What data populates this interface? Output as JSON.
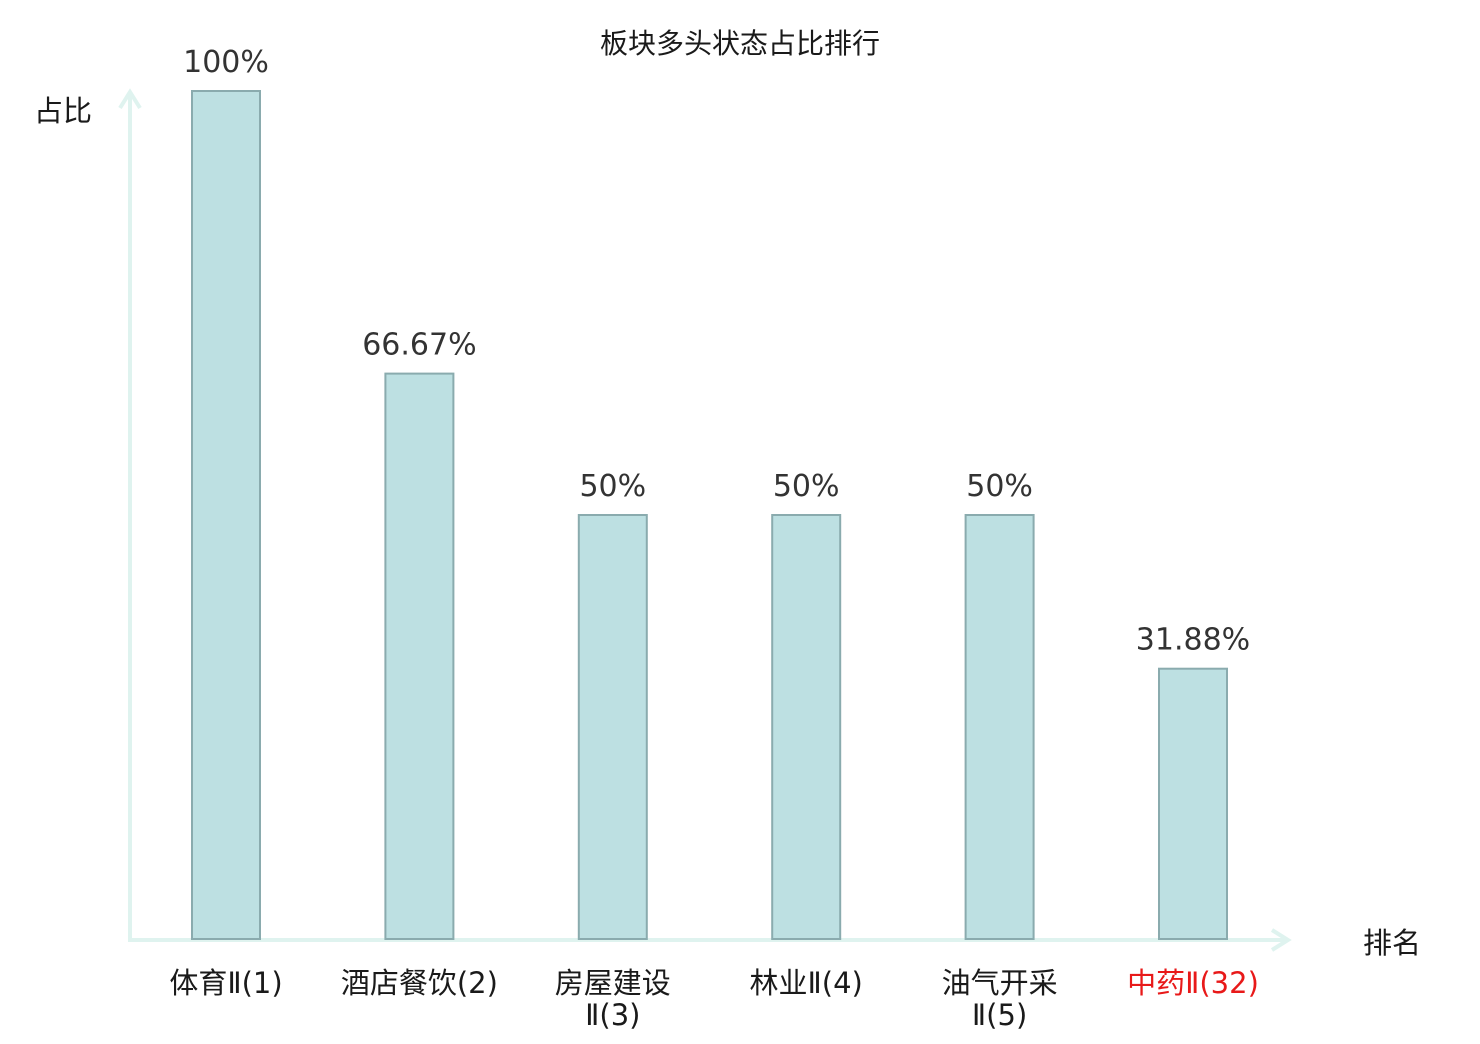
{
  "colors": {
    "bar_fill": "#bde0e2",
    "bar_stroke": "#8aabae",
    "axis": "#dff3ef",
    "text": "#1a1a1a",
    "value_text": "#333333",
    "highlight": "#e81919"
  },
  "chart_data": {
    "type": "bar",
    "title": "板块多头状态占比排行",
    "xlabel": "排名",
    "ylabel": "占比",
    "ylim": [
      0,
      100
    ],
    "grid": false,
    "categories": [
      [
        "体育Ⅱ(1)"
      ],
      [
        "酒店餐饮(2)"
      ],
      [
        "房屋建设",
        "Ⅱ(3)"
      ],
      [
        "林业Ⅱ(4)"
      ],
      [
        "油气开采",
        "Ⅱ(5)"
      ],
      [
        "中药Ⅱ(32)"
      ]
    ],
    "values": [
      100,
      66.67,
      50,
      50,
      50,
      31.88
    ],
    "value_labels": [
      "100%",
      "66.67%",
      "50%",
      "50%",
      "50%",
      "31.88%"
    ],
    "highlight_index": 5
  }
}
